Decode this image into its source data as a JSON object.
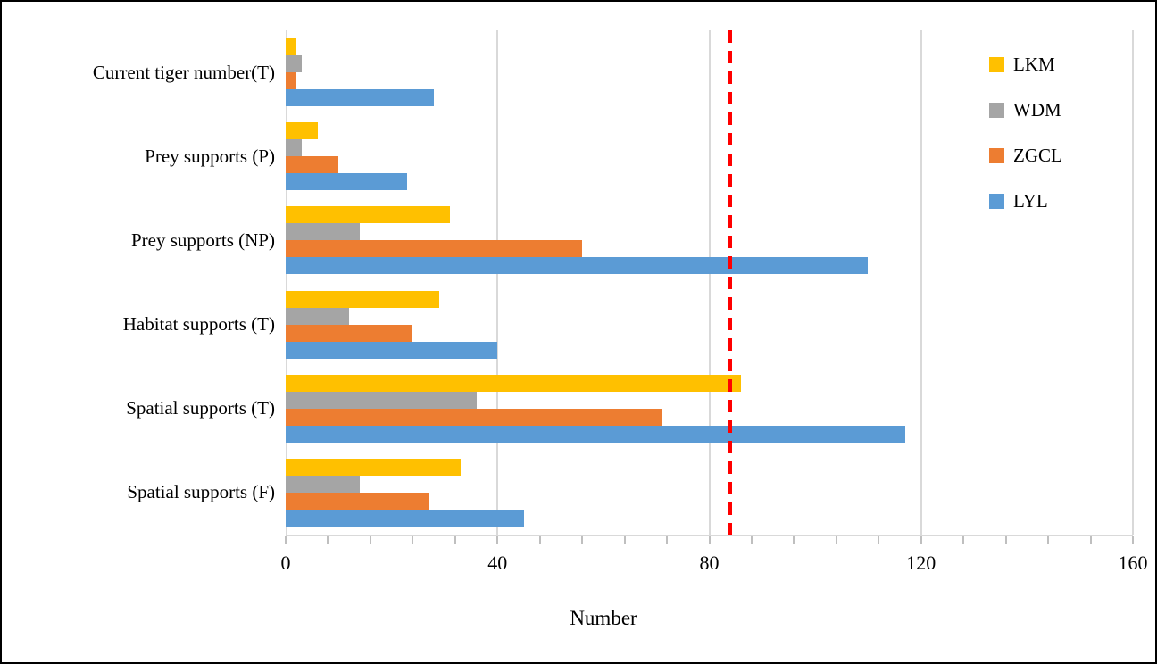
{
  "chart_data": {
    "type": "bar",
    "orientation": "horizontal",
    "title": "",
    "xlabel": "Number",
    "ylabel": "",
    "xlim": [
      0,
      160
    ],
    "x_major_ticks": [
      0,
      40,
      80,
      120,
      160
    ],
    "x_minor_tick_unit": 8,
    "gridlines": {
      "vertical_major": true,
      "color": "#D9D9D9"
    },
    "categories": [
      "Current tiger number(T)",
      "Prey supports (P)",
      "Prey supports (NP)",
      "Habitat supports (T)",
      "Spatial supports (T)",
      "Spatial supports (F)"
    ],
    "series": [
      {
        "name": "LKM",
        "color": "#FFC000",
        "values": [
          2,
          6,
          31,
          29,
          86,
          33
        ]
      },
      {
        "name": "WDM",
        "color": "#A5A5A5",
        "values": [
          3,
          3,
          14,
          12,
          36,
          14
        ]
      },
      {
        "name": "ZGCL",
        "color": "#ED7D31",
        "values": [
          2,
          10,
          56,
          24,
          71,
          27
        ]
      },
      {
        "name": "LYL",
        "color": "#5B9BD5",
        "values": [
          28,
          23,
          110,
          40,
          117,
          45
        ]
      }
    ],
    "reference_line": {
      "value": 84,
      "color": "#FF0000",
      "style": "dashed"
    },
    "legend_position": "top-right"
  },
  "colors": {
    "axis_line": "#D9D9D9",
    "tick_mark": "#BFBFBF",
    "text": "#000000",
    "background": "#FFFFFF",
    "frame_border": "#000000"
  }
}
